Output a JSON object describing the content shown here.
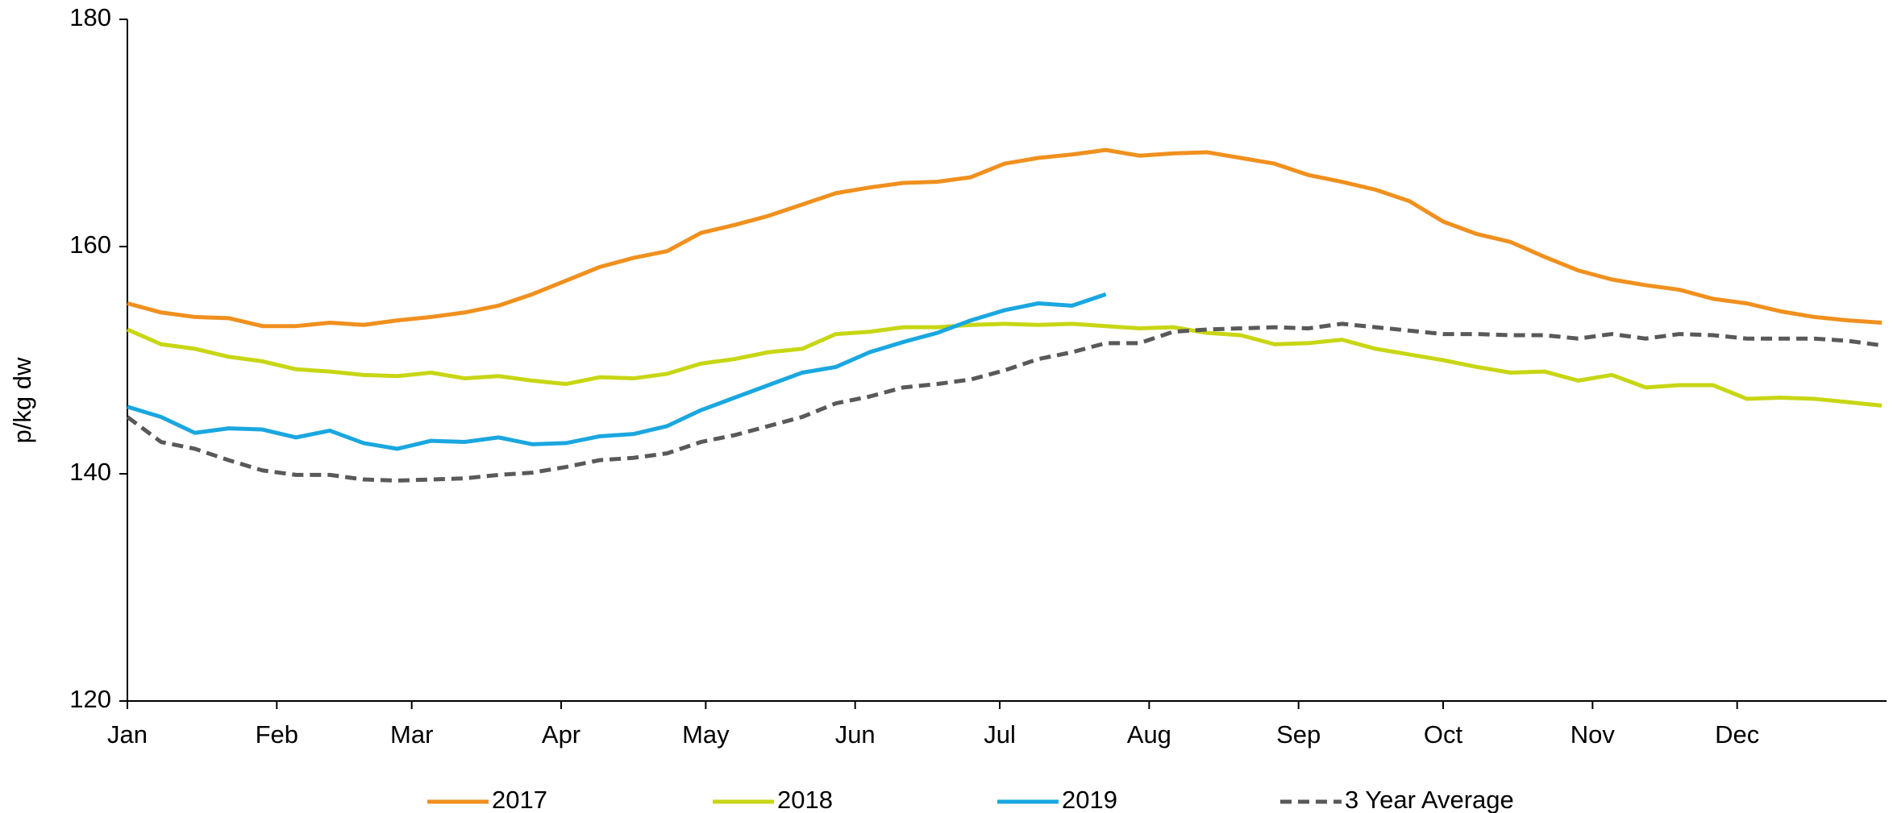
{
  "chart_data": {
    "type": "line",
    "y_label": "p/kg dw",
    "xlim": [
      0,
      365
    ],
    "xticks": [
      {
        "value": 0,
        "label": "Jan"
      },
      {
        "value": 31,
        "label": "Feb"
      },
      {
        "value": 59,
        "label": "Mar"
      },
      {
        "value": 90,
        "label": "Apr"
      },
      {
        "value": 120,
        "label": "May"
      },
      {
        "value": 151,
        "label": "Jun"
      },
      {
        "value": 181,
        "label": "Jul"
      },
      {
        "value": 212,
        "label": "Aug"
      },
      {
        "value": 243,
        "label": "Sep"
      },
      {
        "value": 273,
        "label": "Oct"
      },
      {
        "value": 304,
        "label": "Nov"
      },
      {
        "value": 334,
        "label": "Dec"
      }
    ],
    "ylim": [
      120,
      180
    ],
    "yticks": [
      120,
      140,
      160,
      180
    ],
    "x": [
      0,
      7,
      14,
      21,
      28,
      35,
      42,
      49,
      56,
      63,
      70,
      77,
      84,
      91,
      98,
      105,
      112,
      119,
      126,
      133,
      140,
      147,
      154,
      161,
      168,
      175,
      182,
      189,
      196,
      203,
      210,
      217,
      224,
      231,
      238,
      245,
      252,
      259,
      266,
      273,
      280,
      287,
      294,
      301,
      308,
      315,
      322,
      329,
      336,
      343,
      350,
      357,
      364
    ],
    "series": [
      {
        "name": "2017",
        "color": "#f0901e",
        "dashed": false,
        "values": [
          155,
          154.2,
          153.8,
          153.7,
          153,
          153,
          153.3,
          153.1,
          153.5,
          153.8,
          154.2,
          154.8,
          155.8,
          157,
          158.2,
          159,
          159.6,
          161.2,
          161.9,
          162.7,
          163.7,
          164.7,
          165.2,
          165.6,
          165.7,
          166.1,
          167.3,
          167.8,
          168.1,
          168.5,
          168,
          168.2,
          168.3,
          167.8,
          167.3,
          166.3,
          165.7,
          165,
          164,
          162.2,
          161.1,
          160.4,
          159.1,
          157.9,
          157.1,
          156.6,
          156.2,
          155.4,
          155,
          154.3,
          153.8,
          153.5,
          153.3
        ]
      },
      {
        "name": "2018",
        "color": "#c8d614",
        "dashed": false,
        "values": [
          152.7,
          151.4,
          151,
          150.3,
          149.9,
          149.2,
          149,
          148.7,
          148.6,
          148.9,
          148.4,
          148.6,
          148.2,
          147.9,
          148.5,
          148.4,
          148.8,
          149.7,
          150.1,
          150.7,
          151,
          152.3,
          152.5,
          152.9,
          152.9,
          153.1,
          153.2,
          153.1,
          153.2,
          153,
          152.8,
          152.9,
          152.4,
          152.2,
          151.4,
          151.5,
          151.8,
          151,
          150.5,
          150,
          149.4,
          148.9,
          149,
          148.2,
          148.7,
          147.6,
          147.8,
          147.8,
          146.6,
          146.7,
          146.6,
          146.3,
          146
        ]
      },
      {
        "name": "2019",
        "color": "#1aa7e0",
        "dashed": false,
        "values": [
          145.9,
          145,
          143.6,
          144,
          143.9,
          143.2,
          143.8,
          142.7,
          142.2,
          142.9,
          142.8,
          143.2,
          142.6,
          142.7,
          143.3,
          143.5,
          144.2,
          145.6,
          146.7,
          147.8,
          148.9,
          149.4,
          150.7,
          151.6,
          152.4,
          153.5,
          154.4,
          155,
          154.8,
          155.8,
          null,
          null,
          null,
          null,
          null,
          null,
          null,
          null,
          null,
          null,
          null,
          null,
          null,
          null,
          null,
          null,
          null,
          null,
          null,
          null,
          null,
          null,
          null
        ]
      },
      {
        "name": "3 Year Average",
        "color": "#595959",
        "dashed": true,
        "values": [
          145,
          142.8,
          142.2,
          141.2,
          140.3,
          139.9,
          139.9,
          139.5,
          139.4,
          139.5,
          139.6,
          139.9,
          140.1,
          140.6,
          141.2,
          141.4,
          141.8,
          142.8,
          143.4,
          144.2,
          145,
          146.2,
          146.8,
          147.6,
          147.9,
          148.3,
          149.1,
          150.1,
          150.7,
          151.5,
          151.5,
          152.5,
          152.7,
          152.8,
          152.9,
          152.8,
          153.2,
          152.9,
          152.6,
          152.3,
          152.3,
          152.2,
          152.2,
          151.9,
          152.3,
          151.9,
          152.3,
          152.2,
          151.9,
          151.9,
          151.9,
          151.7,
          151.3
        ]
      }
    ]
  }
}
